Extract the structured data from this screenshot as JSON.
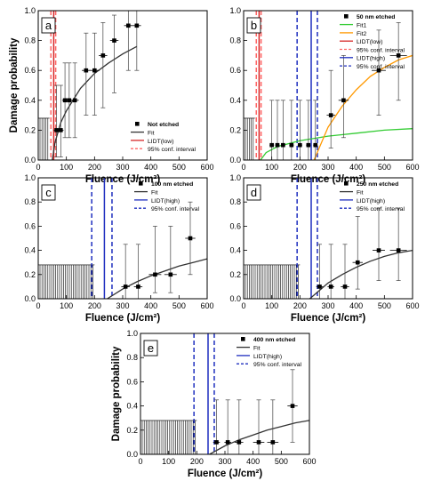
{
  "chart_data": [
    {
      "type": "scatter",
      "panel_label": "a",
      "xlabel": "Fluence (J/cm²)",
      "ylabel": "Damage probability",
      "xlim": [
        0,
        600
      ],
      "ylim": [
        0,
        1.0
      ],
      "x_ticks": [
        "0",
        "100",
        "200",
        "300",
        "400",
        "500",
        "600"
      ],
      "y_ticks": [
        "0.0",
        "0.2",
        "0.4",
        "0.6",
        "0.8",
        "1.0"
      ],
      "legend_position": "bottom-right",
      "legend": [
        {
          "label": "Not etched",
          "style": "marker",
          "color": "#000000"
        },
        {
          "label": "Fit",
          "style": "line",
          "color": "#333333"
        },
        {
          "label": "LIDT(low)",
          "style": "line",
          "color": "#d62728"
        },
        {
          "label": "95% conf. interval",
          "style": "dash",
          "color": "#ff6666"
        }
      ],
      "points": [
        {
          "x": 65,
          "y": 0.2,
          "xerr": 10
        },
        {
          "x": 80,
          "y": 0.2,
          "xerr": 10
        },
        {
          "x": 95,
          "y": 0.4,
          "xerr": 10
        },
        {
          "x": 110,
          "y": 0.4,
          "xerr": 12
        },
        {
          "x": 130,
          "y": 0.4,
          "xerr": 14
        },
        {
          "x": 170,
          "y": 0.6,
          "xerr": 15
        },
        {
          "x": 200,
          "y": 0.6,
          "xerr": 18
        },
        {
          "x": 230,
          "y": 0.7,
          "xerr": 15
        },
        {
          "x": 270,
          "y": 0.8,
          "xerr": 15
        },
        {
          "x": 320,
          "y": 0.9,
          "xerr": 15
        },
        {
          "x": 350,
          "y": 0.9,
          "xerr": 15
        }
      ],
      "yerr_bars": [
        {
          "x": 65,
          "low": 0.02,
          "high": 0.5
        },
        {
          "x": 80,
          "low": 0.02,
          "high": 0.5
        },
        {
          "x": 95,
          "low": 0.15,
          "high": 0.65
        },
        {
          "x": 110,
          "low": 0.15,
          "high": 0.65
        },
        {
          "x": 130,
          "low": 0.15,
          "high": 0.65
        },
        {
          "x": 170,
          "low": 0.3,
          "high": 0.85
        },
        {
          "x": 200,
          "low": 0.3,
          "high": 0.85
        },
        {
          "x": 230,
          "low": 0.35,
          "high": 0.92
        },
        {
          "x": 270,
          "low": 0.45,
          "high": 0.97
        },
        {
          "x": 320,
          "low": 0.6,
          "high": 1.0
        },
        {
          "x": 350,
          "low": 0.6,
          "high": 1.0
        }
      ],
      "fits": [
        {
          "color": "#333333",
          "points": [
            [
              50,
              0.0
            ],
            [
              60,
              0.12
            ],
            [
              80,
              0.25
            ],
            [
              100,
              0.33
            ],
            [
              150,
              0.48
            ],
            [
              200,
              0.58
            ],
            [
              250,
              0.65
            ],
            [
              300,
              0.71
            ],
            [
              350,
              0.76
            ]
          ]
        }
      ],
      "vlines": [
        {
          "x": 55,
          "color": "#d62728",
          "style": "solid"
        },
        {
          "x": 45,
          "color": "#ff6666",
          "style": "dash"
        },
        {
          "x": 62,
          "color": "#ff6666",
          "style": "dash"
        }
      ],
      "ghost": {
        "x_start": 0,
        "x_end": 40,
        "height": 0.28
      }
    },
    {
      "type": "scatter",
      "panel_label": "b",
      "xlabel": "Fluence (J/cm²)",
      "ylabel": "",
      "xlim": [
        0,
        600
      ],
      "ylim": [
        0,
        1.0
      ],
      "x_ticks": [
        "0",
        "100",
        "200",
        "300",
        "400",
        "500",
        "600"
      ],
      "y_ticks": [
        "0.0",
        "0.2",
        "0.4",
        "0.6",
        "0.8",
        "1.0"
      ],
      "legend_position": "top-right",
      "legend": [
        {
          "label": "50 nm etched",
          "style": "marker",
          "color": "#000000"
        },
        {
          "label": "Fit1",
          "style": "line",
          "color": "#33cc33"
        },
        {
          "label": "Fit2",
          "style": "line",
          "color": "#ff9900"
        },
        {
          "label": "LIDT(low)",
          "style": "line",
          "color": "#d62728"
        },
        {
          "label": "95% conf. interval",
          "style": "dash",
          "color": "#ff6666"
        },
        {
          "label": "LIDT(high)",
          "style": "line",
          "color": "#1f2fbf"
        },
        {
          "label": "95% conf. interval",
          "style": "dash",
          "color": "#1f2fbf"
        }
      ],
      "points": [
        {
          "x": 100,
          "y": 0.1,
          "xerr": 8
        },
        {
          "x": 120,
          "y": 0.1,
          "xerr": 8
        },
        {
          "x": 140,
          "y": 0.1,
          "xerr": 8
        },
        {
          "x": 170,
          "y": 0.1,
          "xerr": 8
        },
        {
          "x": 200,
          "y": 0.1,
          "xerr": 8
        },
        {
          "x": 230,
          "y": 0.1,
          "xerr": 8
        },
        {
          "x": 255,
          "y": 0.1,
          "xerr": 8
        },
        {
          "x": 310,
          "y": 0.3,
          "xerr": 15
        },
        {
          "x": 355,
          "y": 0.4,
          "xerr": 18
        },
        {
          "x": 480,
          "y": 0.6,
          "xerr": 25
        },
        {
          "x": 550,
          "y": 0.7,
          "xerr": 30
        }
      ],
      "yerr_bars": [
        {
          "x": 100,
          "low": 0.0,
          "high": 0.4
        },
        {
          "x": 120,
          "low": 0.0,
          "high": 0.4
        },
        {
          "x": 140,
          "low": 0.0,
          "high": 0.4
        },
        {
          "x": 170,
          "low": 0.0,
          "high": 0.4
        },
        {
          "x": 200,
          "low": 0.0,
          "high": 0.4
        },
        {
          "x": 230,
          "low": 0.0,
          "high": 0.4
        },
        {
          "x": 255,
          "low": 0.0,
          "high": 0.4
        },
        {
          "x": 310,
          "low": 0.08,
          "high": 0.6
        },
        {
          "x": 355,
          "low": 0.15,
          "high": 0.7
        },
        {
          "x": 480,
          "low": 0.3,
          "high": 0.87
        },
        {
          "x": 550,
          "low": 0.4,
          "high": 0.92
        }
      ],
      "fits": [
        {
          "color": "#33cc33",
          "points": [
            [
              60,
              0.0
            ],
            [
              80,
              0.05
            ],
            [
              120,
              0.09
            ],
            [
              200,
              0.13
            ],
            [
              300,
              0.16
            ],
            [
              400,
              0.18
            ],
            [
              500,
              0.2
            ],
            [
              600,
              0.21
            ]
          ]
        },
        {
          "color": "#ff9900",
          "points": [
            [
              250,
              0.0
            ],
            [
              300,
              0.22
            ],
            [
              350,
              0.36
            ],
            [
              400,
              0.47
            ],
            [
              450,
              0.56
            ],
            [
              500,
              0.62
            ],
            [
              550,
              0.67
            ],
            [
              600,
              0.7
            ]
          ]
        }
      ],
      "vlines": [
        {
          "x": 55,
          "color": "#d62728",
          "style": "solid"
        },
        {
          "x": 45,
          "color": "#ff6666",
          "style": "dash"
        },
        {
          "x": 62,
          "color": "#ff6666",
          "style": "dash"
        },
        {
          "x": 240,
          "color": "#1f2fbf",
          "style": "solid"
        },
        {
          "x": 190,
          "color": "#1f2fbf",
          "style": "dash"
        },
        {
          "x": 262,
          "color": "#1f2fbf",
          "style": "dash"
        }
      ],
      "ghost": {
        "x_start": 0,
        "x_end": 40,
        "height": 0.28
      }
    },
    {
      "type": "scatter",
      "panel_label": "c",
      "xlabel": "Fluence (J/cm²)",
      "ylabel": "",
      "xlim": [
        0,
        600
      ],
      "ylim": [
        0,
        1.0
      ],
      "x_ticks": [
        "0",
        "100",
        "200",
        "300",
        "400",
        "500",
        "600"
      ],
      "y_ticks": [
        "0.0",
        "0.2",
        "0.4",
        "0.6",
        "0.8",
        "1.0"
      ],
      "legend_position": "top-right",
      "legend": [
        {
          "label": "100 nm etched",
          "style": "marker",
          "color": "#000000"
        },
        {
          "label": "Fit",
          "style": "line",
          "color": "#333333"
        },
        {
          "label": "LIDT(high)",
          "style": "line",
          "color": "#1f2fbf"
        },
        {
          "label": "95% conf. interval",
          "style": "dash",
          "color": "#1f2fbf"
        }
      ],
      "points": [
        {
          "x": 310,
          "y": 0.1,
          "xerr": 15
        },
        {
          "x": 355,
          "y": 0.1,
          "xerr": 15
        },
        {
          "x": 415,
          "y": 0.2,
          "xerr": 22
        },
        {
          "x": 470,
          "y": 0.2,
          "xerr": 22
        },
        {
          "x": 540,
          "y": 0.5,
          "xerr": 18
        }
      ],
      "yerr_bars": [
        {
          "x": 310,
          "low": 0.0,
          "high": 0.45
        },
        {
          "x": 355,
          "low": 0.0,
          "high": 0.45
        },
        {
          "x": 415,
          "low": 0.05,
          "high": 0.6
        },
        {
          "x": 470,
          "low": 0.05,
          "high": 0.6
        },
        {
          "x": 540,
          "low": 0.2,
          "high": 0.8
        }
      ],
      "fits": [
        {
          "color": "#333333",
          "points": [
            [
              245,
              0.0
            ],
            [
              300,
              0.08
            ],
            [
              350,
              0.14
            ],
            [
              400,
              0.19
            ],
            [
              450,
              0.23
            ],
            [
              500,
              0.27
            ],
            [
              550,
              0.3
            ],
            [
              600,
              0.33
            ]
          ]
        }
      ],
      "vlines": [
        {
          "x": 235,
          "color": "#1f2fbf",
          "style": "solid"
        },
        {
          "x": 190,
          "color": "#1f2fbf",
          "style": "dash"
        },
        {
          "x": 262,
          "color": "#1f2fbf",
          "style": "dash"
        }
      ],
      "ghost": {
        "x_start": 0,
        "x_end": 200,
        "height": 0.28
      }
    },
    {
      "type": "scatter",
      "panel_label": "d",
      "xlabel": "Fluence (J/cm²)",
      "ylabel": "",
      "xlim": [
        0,
        600
      ],
      "ylim": [
        0,
        1.0
      ],
      "x_ticks": [
        "0",
        "100",
        "200",
        "300",
        "400",
        "500",
        "600"
      ],
      "y_ticks": [
        "0.0",
        "0.2",
        "0.4",
        "0.6",
        "0.8",
        "1.0"
      ],
      "legend_position": "top-right",
      "legend": [
        {
          "label": "250 nm etched",
          "style": "marker",
          "color": "#000000"
        },
        {
          "label": "Fit",
          "style": "line",
          "color": "#333333"
        },
        {
          "label": "LIDT(high)",
          "style": "line",
          "color": "#1f2fbf"
        },
        {
          "label": "95% conf. interval",
          "style": "dash",
          "color": "#1f2fbf"
        }
      ],
      "points": [
        {
          "x": 270,
          "y": 0.1,
          "xerr": 12
        },
        {
          "x": 310,
          "y": 0.1,
          "xerr": 12
        },
        {
          "x": 360,
          "y": 0.1,
          "xerr": 15
        },
        {
          "x": 405,
          "y": 0.3,
          "xerr": 18
        },
        {
          "x": 480,
          "y": 0.4,
          "xerr": 22
        },
        {
          "x": 550,
          "y": 0.4,
          "xerr": 30
        }
      ],
      "yerr_bars": [
        {
          "x": 270,
          "low": 0.0,
          "high": 0.45
        },
        {
          "x": 310,
          "low": 0.0,
          "high": 0.45
        },
        {
          "x": 360,
          "low": 0.0,
          "high": 0.45
        },
        {
          "x": 405,
          "low": 0.08,
          "high": 0.68
        },
        {
          "x": 480,
          "low": 0.15,
          "high": 0.75
        },
        {
          "x": 550,
          "low": 0.15,
          "high": 0.75
        }
      ],
      "fits": [
        {
          "color": "#333333",
          "points": [
            [
              235,
              0.0
            ],
            [
              270,
              0.07
            ],
            [
              300,
              0.13
            ],
            [
              350,
              0.2
            ],
            [
              400,
              0.26
            ],
            [
              450,
              0.31
            ],
            [
              500,
              0.35
            ],
            [
              550,
              0.38
            ],
            [
              600,
              0.4
            ]
          ]
        }
      ],
      "vlines": [
        {
          "x": 240,
          "color": "#1f2fbf",
          "style": "solid"
        },
        {
          "x": 190,
          "color": "#1f2fbf",
          "style": "dash"
        },
        {
          "x": 262,
          "color": "#1f2fbf",
          "style": "dash"
        }
      ],
      "ghost": {
        "x_start": 0,
        "x_end": 200,
        "height": 0.28
      }
    },
    {
      "type": "scatter",
      "panel_label": "e",
      "xlabel": "Fluence (J/cm²)",
      "ylabel": "Damage probability",
      "xlim": [
        0,
        600
      ],
      "ylim": [
        0,
        1.0
      ],
      "x_ticks": [
        "0",
        "100",
        "200",
        "300",
        "400",
        "500",
        "600"
      ],
      "y_ticks": [
        "0.0",
        "0.2",
        "0.4",
        "0.6",
        "0.8",
        "1.0"
      ],
      "legend_position": "top-right",
      "legend": [
        {
          "label": "400 nm etched",
          "style": "marker",
          "color": "#000000"
        },
        {
          "label": "Fit",
          "style": "line",
          "color": "#333333"
        },
        {
          "label": "LIDT(high)",
          "style": "line",
          "color": "#1f2fbf"
        },
        {
          "label": "95% conf. interval",
          "style": "dash",
          "color": "#1f2fbf"
        }
      ],
      "points": [
        {
          "x": 270,
          "y": 0.1,
          "xerr": 12
        },
        {
          "x": 310,
          "y": 0.1,
          "xerr": 12
        },
        {
          "x": 350,
          "y": 0.1,
          "xerr": 15
        },
        {
          "x": 420,
          "y": 0.1,
          "xerr": 20
        },
        {
          "x": 470,
          "y": 0.1,
          "xerr": 20
        },
        {
          "x": 540,
          "y": 0.4,
          "xerr": 18
        }
      ],
      "yerr_bars": [
        {
          "x": 270,
          "low": 0.0,
          "high": 0.45
        },
        {
          "x": 310,
          "low": 0.0,
          "high": 0.45
        },
        {
          "x": 350,
          "low": 0.0,
          "high": 0.45
        },
        {
          "x": 420,
          "low": 0.0,
          "high": 0.45
        },
        {
          "x": 470,
          "low": 0.0,
          "high": 0.45
        },
        {
          "x": 540,
          "low": 0.1,
          "high": 0.7
        }
      ],
      "fits": [
        {
          "color": "#333333",
          "points": [
            [
              245,
              0.0
            ],
            [
              300,
              0.07
            ],
            [
              350,
              0.12
            ],
            [
              400,
              0.16
            ],
            [
              450,
              0.2
            ],
            [
              500,
              0.23
            ],
            [
              550,
              0.26
            ],
            [
              600,
              0.28
            ]
          ]
        }
      ],
      "vlines": [
        {
          "x": 240,
          "color": "#1f2fbf",
          "style": "solid"
        },
        {
          "x": 190,
          "color": "#1f2fbf",
          "style": "dash"
        },
        {
          "x": 262,
          "color": "#1f2fbf",
          "style": "dash"
        }
      ],
      "ghost": {
        "x_start": 0,
        "x_end": 200,
        "height": 0.28
      }
    }
  ]
}
